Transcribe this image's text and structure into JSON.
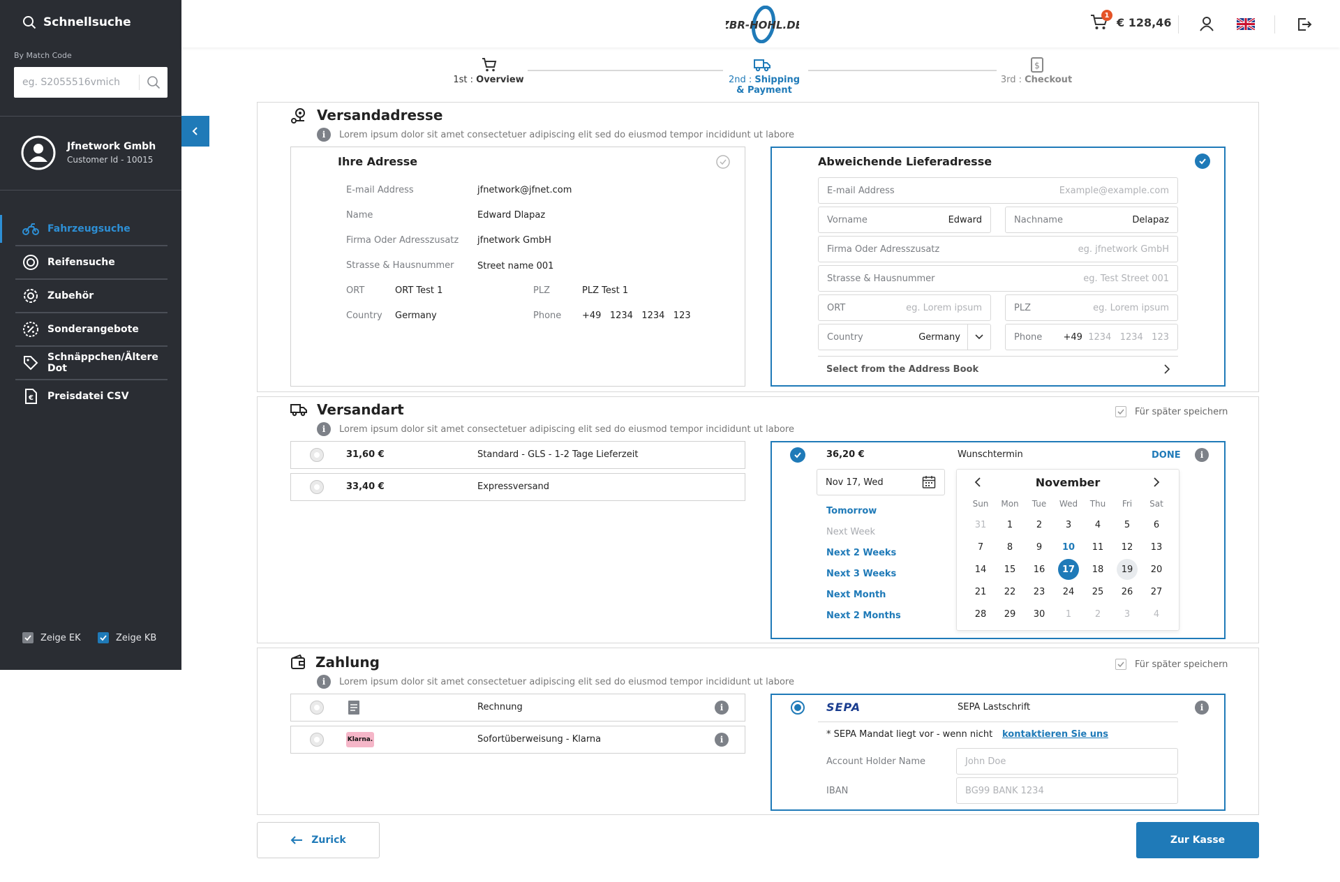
{
  "sidebar": {
    "title": "Schnellsuche",
    "match_label": "By Match Code",
    "search_placeholder": "eg. S2055516vmich",
    "user_name": "Jfnetwork Gmbh",
    "customer_id": "Customer Id - 10015",
    "items": [
      {
        "label": "Fahrzeugsuche",
        "icon": "motorcycle-icon",
        "active": true
      },
      {
        "label": "Reifensuche",
        "icon": "tire-icon"
      },
      {
        "label": "Zubehör",
        "icon": "gear-icon"
      },
      {
        "label": "Sonderangebote",
        "icon": "percent-badge-icon"
      },
      {
        "label": "Schnäppchen/Ältere Dot",
        "icon": "price-tag-icon"
      },
      {
        "label": "Preisdatei CSV",
        "icon": "euro-file-icon"
      }
    ],
    "show_ek": "Zeige EK",
    "show_kb": "Zeige KB"
  },
  "header": {
    "logo_text": "ZBR-HOHL.DE",
    "cart_count": "1",
    "cart_total": "€ 128,46"
  },
  "stepper": [
    {
      "num": "1st :",
      "label": "Overview",
      "state": "done"
    },
    {
      "num": "2nd :",
      "label": "Shipping",
      "label2": "& Payment",
      "state": "active"
    },
    {
      "num": "3rd :",
      "label": "Checkout",
      "state": "pending"
    }
  ],
  "lorem": "Lorem ipsum dolor sit amet consectetuer adipiscing elit sed do eiusmod tempor incididunt ut labore",
  "address": {
    "title": "Versandadresse",
    "own": {
      "title": "Ihre Adresse",
      "email_label": "E-mail Address",
      "email": "jfnetwork@jfnet.com",
      "name_label": "Name",
      "name": "Edward Dlapaz",
      "company_label": "Firma Oder Adresszusatz",
      "company": "jfnetwork GmbH",
      "street_label": "Strasse & Hausnummer",
      "street": "Street name 001",
      "city_label": "ORT",
      "city": "ORT Test 1",
      "zip_label": "PLZ",
      "zip": "PLZ Test 1",
      "country_label": "Country",
      "country": "Germany",
      "phone_label": "Phone",
      "phone": "+49   1234   1234   123"
    },
    "alt": {
      "title": "Abweichende Lieferadresse",
      "email_label": "E-mail Address",
      "email_ph": "Example@example.com",
      "first_label": "Vorname",
      "first": "Edward",
      "last_label": "Nachname",
      "last": "Delapaz",
      "company_label": "Firma Oder Adresszusatz",
      "company_ph": "eg. jfnetwork GmbH",
      "street_label": "Strasse & Hausnummer",
      "street_ph": "eg. Test Street 001",
      "city_label": "ORT",
      "city_ph": "eg. Lorem ipsum",
      "zip_label": "PLZ",
      "zip_ph": "eg. Lorem ipsum",
      "country_label": "Country",
      "country": "Germany",
      "phone_label": "Phone",
      "phone_prefix": "+49",
      "phone_ph": "1234   1234   123",
      "address_book": "Select from the Address Book"
    }
  },
  "shipping": {
    "title": "Versandart",
    "save_later": "Für später speichern",
    "options": [
      {
        "price": "31,60 €",
        "name": "Standard - GLS - 1-2 Tage Lieferzeit"
      },
      {
        "price": "33,40 €",
        "name": "Expressversand"
      }
    ],
    "selected": {
      "price": "36,20 €",
      "name": "Wunschtermin",
      "done": "DONE"
    },
    "date_value": "Nov 17, Wed",
    "quick": [
      {
        "label": "Tomorrow",
        "enabled": true
      },
      {
        "label": "Next Week",
        "enabled": false
      },
      {
        "label": "Next 2 Weeks",
        "enabled": true
      },
      {
        "label": "Next 3 Weeks",
        "enabled": true
      },
      {
        "label": "Next Month",
        "enabled": true
      },
      {
        "label": "Next 2 Months",
        "enabled": true
      }
    ],
    "calendar": {
      "month": "November",
      "weekdays": [
        "Sun",
        "Mon",
        "Tue",
        "Wed",
        "Thu",
        "Fri",
        "Sat"
      ],
      "days": [
        "31",
        "1",
        "2",
        "3",
        "4",
        "5",
        "6",
        "7",
        "8",
        "9",
        "10",
        "11",
        "12",
        "13",
        "14",
        "15",
        "16",
        "17",
        "18",
        "19",
        "20",
        "21",
        "22",
        "23",
        "24",
        "25",
        "26",
        "27",
        "28",
        "29",
        "30",
        "1",
        "2",
        "3",
        "4"
      ],
      "muted": [
        0,
        31,
        32,
        33,
        34
      ],
      "today": 10,
      "selected": 17,
      "hover": 19
    }
  },
  "payment": {
    "title": "Zahlung",
    "save_later": "Für später speichern",
    "options": [
      {
        "name": "Rechnung",
        "icon": "invoice-icon"
      },
      {
        "name": "Sofortüberweisung - Klarna",
        "logo": "Klarna."
      }
    ],
    "sepa": {
      "logo": "SEPA",
      "name": "SEPA Lastschrift",
      "mandate": "* SEPA Mandat liegt vor - wenn nicht",
      "contact": "kontaktieren Sie uns",
      "holder_label": "Account Holder Name",
      "holder_ph": "John Doe",
      "iban_label": "IBAN",
      "iban_ph": "BG99 BANK 1234"
    }
  },
  "footer": {
    "back": "Zurick",
    "next": "Zur Kasse"
  },
  "colors": {
    "accent": "#1f7ab8",
    "sidebar": "#2a2d33",
    "badge": "#e55427"
  }
}
